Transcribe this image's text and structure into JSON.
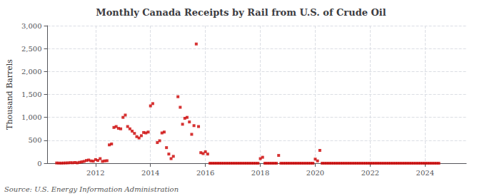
{
  "chart_data": {
    "type": "scatter",
    "title": "Monthly Canada Receipts by Rail from U.S. of Crude Oil",
    "ylabel": "Thousand Barrels",
    "source": "Source: U.S. Energy Information Administration",
    "color": "#cc0000",
    "marker": "square",
    "grid": true,
    "xlim": [
      2010.25,
      2025.5
    ],
    "xticks": [
      2012,
      2014,
      2016,
      2018,
      2020,
      2022,
      2024
    ],
    "ylim": [
      0,
      3000
    ],
    "yticks": [
      0,
      500,
      {
        "value": 1000,
        "label": "1,000"
      },
      {
        "value": 1500,
        "label": "1,500"
      },
      {
        "value": 2000,
        "label": "2,000"
      },
      {
        "value": 2500,
        "label": "2,500"
      },
      {
        "value": 3000,
        "label": "3,000"
      }
    ],
    "x": [
      2010.583,
      2010.667,
      2010.75,
      2010.833,
      2010.917,
      2011.0,
      2011.083,
      2011.167,
      2011.25,
      2011.333,
      2011.417,
      2011.5,
      2011.583,
      2011.667,
      2011.75,
      2011.833,
      2011.917,
      2012.0,
      2012.083,
      2012.167,
      2012.25,
      2012.333,
      2012.417,
      2012.5,
      2012.583,
      2012.667,
      2012.75,
      2012.833,
      2012.917,
      2013.0,
      2013.083,
      2013.167,
      2013.25,
      2013.333,
      2013.417,
      2013.5,
      2013.583,
      2013.667,
      2013.75,
      2013.833,
      2013.917,
      2014.0,
      2014.083,
      2014.25,
      2014.333,
      2014.417,
      2014.5,
      2014.583,
      2014.667,
      2014.75,
      2014.833,
      2015.0,
      2015.083,
      2015.167,
      2015.25,
      2015.333,
      2015.417,
      2015.5,
      2015.583,
      2015.667,
      2015.75,
      2015.833,
      2015.917,
      2016.0,
      2016.083,
      2016.167,
      2016.25,
      2016.333,
      2016.417,
      2016.5,
      2016.583,
      2016.667,
      2016.75,
      2016.833,
      2016.917,
      2017.0,
      2017.083,
      2017.167,
      2017.25,
      2017.333,
      2017.417,
      2017.5,
      2017.583,
      2017.667,
      2017.75,
      2017.833,
      2017.917,
      2018.0,
      2018.083,
      2018.167,
      2018.25,
      2018.333,
      2018.417,
      2018.5,
      2018.583,
      2018.667,
      2018.75,
      2018.833,
      2018.917,
      2019.0,
      2019.083,
      2019.167,
      2019.25,
      2019.333,
      2019.417,
      2019.5,
      2019.583,
      2019.667,
      2019.75,
      2019.833,
      2019.917,
      2020.0,
      2020.083,
      2020.167,
      2020.25,
      2020.333,
      2020.417,
      2020.5,
      2020.583,
      2020.667,
      2020.75,
      2020.833,
      2020.917,
      2021.0,
      2021.083,
      2021.167,
      2021.25,
      2021.333,
      2021.417,
      2021.5,
      2021.583,
      2021.667,
      2021.75,
      2021.833,
      2021.917,
      2022.0,
      2022.083,
      2022.167,
      2022.25,
      2022.333,
      2022.417,
      2022.5,
      2022.583,
      2022.667,
      2022.75,
      2022.833,
      2022.917,
      2023.0,
      2023.083,
      2023.167,
      2023.25,
      2023.333,
      2023.417,
      2023.5,
      2023.583,
      2023.667,
      2023.75,
      2023.833,
      2023.917,
      2024.0,
      2024.083,
      2024.167,
      2024.25,
      2024.333,
      2024.417,
      2024.5
    ],
    "values": [
      5,
      3,
      2,
      4,
      6,
      8,
      12,
      10,
      15,
      8,
      20,
      30,
      40,
      60,
      70,
      50,
      45,
      80,
      60,
      100,
      40,
      50,
      55,
      400,
      420,
      780,
      800,
      760,
      750,
      1000,
      1050,
      800,
      750,
      700,
      650,
      580,
      550,
      600,
      670,
      660,
      680,
      1250,
      1300,
      450,
      490,
      660,
      680,
      340,
      200,
      100,
      150,
      1450,
      1220,
      850,
      980,
      1000,
      900,
      630,
      820,
      2600,
      800,
      230,
      210,
      250,
      200,
      0,
      0,
      0,
      0,
      0,
      0,
      0,
      0,
      0,
      0,
      0,
      0,
      0,
      0,
      0,
      0,
      0,
      0,
      0,
      0,
      0,
      0,
      100,
      130,
      0,
      0,
      0,
      0,
      0,
      0,
      170,
      0,
      0,
      0,
      0,
      0,
      0,
      0,
      0,
      0,
      0,
      0,
      0,
      0,
      0,
      0,
      90,
      50,
      280,
      0,
      0,
      0,
      0,
      0,
      0,
      0,
      0,
      0,
      0,
      0,
      0,
      0,
      0,
      0,
      0,
      0,
      0,
      0,
      0,
      0,
      0,
      0,
      0,
      0,
      0,
      0,
      0,
      0,
      0,
      0,
      0,
      0,
      0,
      0,
      0,
      0,
      0,
      0,
      0,
      0,
      0,
      0,
      0,
      0,
      0,
      0,
      0,
      0,
      0,
      0,
      0
    ]
  }
}
